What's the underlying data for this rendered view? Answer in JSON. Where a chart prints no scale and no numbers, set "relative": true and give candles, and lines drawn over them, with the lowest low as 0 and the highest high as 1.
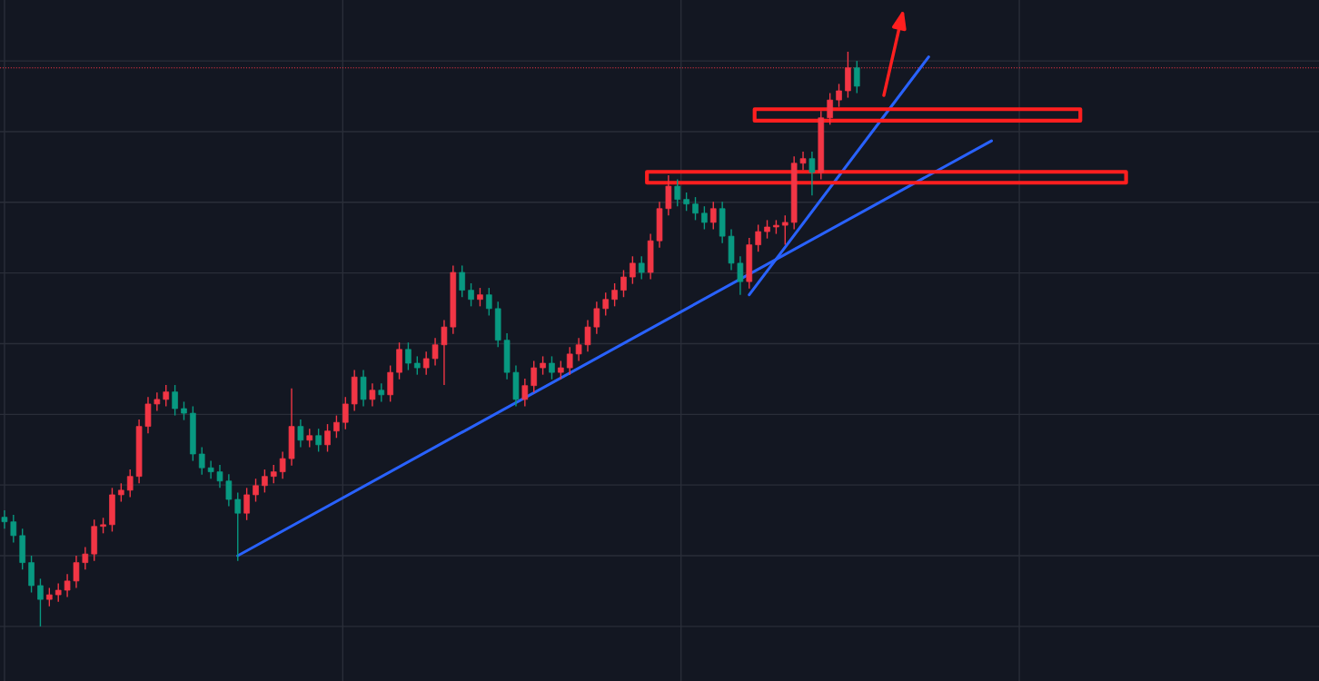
{
  "chart_data": {
    "type": "candlestick",
    "relative": true,
    "grid": true,
    "tick_labels": false,
    "colors": [
      "#089981",
      "#089981",
      "#089981",
      "#089981",
      "#089981",
      "#f23645",
      "#f23645",
      "#f23645",
      "#f23645",
      "#f23645",
      "#f23645",
      "#f23645",
      "#f23645",
      "#f23645",
      "#f23645",
      "#f23645",
      "#f23645",
      "#f23645",
      "#f23645",
      "#089981",
      "#089981",
      "#089981",
      "#089981",
      "#089981",
      "#089981",
      "#089981",
      "#089981",
      "#f23645",
      "#f23645",
      "#f23645",
      "#f23645",
      "#f23645",
      "#f23645",
      "#089981",
      "#f23645",
      "#089981",
      "#f23645",
      "#f23645",
      "#f23645",
      "#f23645",
      "#089981",
      "#f23645",
      "#089981",
      "#f23645",
      "#f23645",
      "#089981",
      "#089981",
      "#f23645",
      "#f23645",
      "#f23645",
      "#f23645",
      "#089981",
      "#089981",
      "#f23645",
      "#089981",
      "#089981",
      "#089981",
      "#089981",
      "#f23645",
      "#f23645",
      "#f23645",
      "#089981",
      "#f23645",
      "#f23645",
      "#f23645",
      "#f23645",
      "#f23645",
      "#f23645",
      "#f23645",
      "#f23645",
      "#f23645",
      "#089981",
      "#f23645",
      "#f23645",
      "#f23645",
      "#089981",
      "#089981",
      "#089981",
      "#089981",
      "#f23645",
      "#089981",
      "#089981",
      "#089981",
      "#f23645",
      "#f23645",
      "#f23645",
      "#f23645",
      "#f23645",
      "#f23645",
      "#f23645",
      "#089981",
      "#f23645",
      "#f23645",
      "#f23645",
      "#f23645",
      "#089981",
      null,
      null,
      null,
      null,
      null,
      null,
      null,
      null,
      null,
      null,
      null,
      null,
      null,
      null,
      null,
      null,
      null,
      null,
      null,
      null,
      null,
      null,
      null,
      null,
      null,
      null,
      null,
      null,
      null,
      null,
      null,
      null,
      null,
      null,
      null,
      null,
      null,
      null,
      null,
      null,
      null,
      null,
      null,
      null,
      null,
      null,
      null,
      null,
      null,
      null,
      null
    ],
    "categories": [
      null,
      null,
      null,
      null,
      null,
      null,
      null,
      null,
      null,
      null,
      null,
      null,
      null,
      null,
      null,
      null,
      null,
      null,
      null,
      null,
      null,
      null,
      null,
      null,
      null,
      null,
      null,
      null,
      null,
      null,
      null,
      null,
      null,
      null,
      null,
      null,
      null,
      null,
      null,
      null,
      null,
      null,
      null,
      null,
      null,
      null,
      null,
      null,
      null,
      null,
      null,
      null,
      null,
      null,
      null,
      null,
      null,
      null,
      null,
      null,
      null,
      null,
      null,
      null,
      null,
      null,
      null,
      null,
      null,
      null,
      null,
      null,
      null,
      null,
      null,
      null,
      null,
      null,
      null,
      null,
      null,
      null,
      null,
      null,
      null,
      null,
      null,
      null,
      null,
      null,
      null,
      null,
      null,
      null,
      null,
      null,
      null,
      null,
      null,
      null,
      null,
      null,
      null,
      null,
      null,
      null,
      null,
      null,
      null,
      null,
      null,
      null,
      null,
      null,
      null,
      null,
      null,
      null,
      null,
      null,
      null,
      null,
      null,
      null,
      null,
      null,
      null,
      null,
      null,
      null,
      null,
      null,
      null,
      null,
      null,
      null,
      null,
      null,
      null,
      null,
      null,
      null,
      null,
      null,
      null,
      null,
      null
    ],
    "ohlc": [
      [
        0.19,
        0.202,
        0.17,
        0.182
      ],
      [
        0.182,
        0.194,
        0.146,
        0.158
      ],
      [
        0.158,
        0.17,
        0.099,
        0.111
      ],
      [
        0.111,
        0.123,
        0.059,
        0.071
      ],
      [
        0.071,
        0.083,
        0,
        0.047
      ],
      [
        0.047,
        0.067,
        0.035,
        0.055
      ],
      [
        0.055,
        0.075,
        0.043,
        0.063
      ],
      [
        0.063,
        0.091,
        0.051,
        0.079
      ],
      [
        0.079,
        0.123,
        0.067,
        0.111
      ],
      [
        0.111,
        0.138,
        0.099,
        0.126
      ],
      [
        0.126,
        0.186,
        0.114,
        0.174
      ],
      [
        0.174,
        0.189,
        0.162,
        0.177
      ],
      [
        0.177,
        0.241,
        0.165,
        0.229
      ],
      [
        0.229,
        0.249,
        0.217,
        0.237
      ],
      [
        0.237,
        0.273,
        0.225,
        0.261
      ],
      [
        0.261,
        0.36,
        0.249,
        0.348
      ],
      [
        0.348,
        0.399,
        0.336,
        0.387
      ],
      [
        0.387,
        0.407,
        0.375,
        0.395
      ],
      [
        0.395,
        0.42,
        0.383,
        0.408
      ],
      [
        0.408,
        0.42,
        0.367,
        0.379
      ],
      [
        0.379,
        0.391,
        0.359,
        0.371
      ],
      [
        0.371,
        0.383,
        0.288,
        0.3
      ],
      [
        0.3,
        0.312,
        0.264,
        0.276
      ],
      [
        0.276,
        0.288,
        0.257,
        0.269
      ],
      [
        0.269,
        0.281,
        0.241,
        0.253
      ],
      [
        0.253,
        0.265,
        0.209,
        0.221
      ],
      [
        0.221,
        0.233,
        0.114,
        0.197
      ],
      [
        0.197,
        0.241,
        0.185,
        0.229
      ],
      [
        0.229,
        0.257,
        0.217,
        0.245
      ],
      [
        0.245,
        0.273,
        0.233,
        0.261
      ],
      [
        0.261,
        0.281,
        0.249,
        0.269
      ],
      [
        0.269,
        0.304,
        0.257,
        0.292
      ],
      [
        0.292,
        0.414,
        0.28,
        0.348
      ],
      [
        0.348,
        0.36,
        0.312,
        0.324
      ],
      [
        0.324,
        0.344,
        0.312,
        0.332
      ],
      [
        0.332,
        0.344,
        0.304,
        0.316
      ],
      [
        0.316,
        0.352,
        0.304,
        0.34
      ],
      [
        0.34,
        0.367,
        0.328,
        0.355
      ],
      [
        0.355,
        0.399,
        0.343,
        0.387
      ],
      [
        0.387,
        0.446,
        0.375,
        0.434
      ],
      [
        0.434,
        0.446,
        0.383,
        0.395
      ],
      [
        0.395,
        0.423,
        0.383,
        0.411
      ],
      [
        0.411,
        0.423,
        0.391,
        0.403
      ],
      [
        0.403,
        0.454,
        0.391,
        0.442
      ],
      [
        0.442,
        0.494,
        0.43,
        0.482
      ],
      [
        0.482,
        0.494,
        0.446,
        0.458
      ],
      [
        0.458,
        0.47,
        0.438,
        0.45
      ],
      [
        0.45,
        0.478,
        0.438,
        0.466
      ],
      [
        0.466,
        0.502,
        0.454,
        0.49
      ],
      [
        0.49,
        0.533,
        0.42,
        0.521
      ],
      [
        0.521,
        0.628,
        0.509,
        0.616
      ],
      [
        0.616,
        0.628,
        0.573,
        0.585
      ],
      [
        0.585,
        0.597,
        0.557,
        0.569
      ],
      [
        0.569,
        0.589,
        0.557,
        0.577
      ],
      [
        0.577,
        0.589,
        0.541,
        0.553
      ],
      [
        0.553,
        0.565,
        0.486,
        0.498
      ],
      [
        0.498,
        0.51,
        0.43,
        0.442
      ],
      [
        0.442,
        0.454,
        0.383,
        0.395
      ],
      [
        0.395,
        0.431,
        0.383,
        0.419
      ],
      [
        0.419,
        0.462,
        0.407,
        0.45
      ],
      [
        0.45,
        0.47,
        0.438,
        0.458
      ],
      [
        0.458,
        0.47,
        0.43,
        0.442
      ],
      [
        0.442,
        0.462,
        0.43,
        0.45
      ],
      [
        0.45,
        0.486,
        0.438,
        0.474
      ],
      [
        0.474,
        0.502,
        0.462,
        0.49
      ],
      [
        0.49,
        0.533,
        0.478,
        0.521
      ],
      [
        0.521,
        0.565,
        0.509,
        0.553
      ],
      [
        0.553,
        0.581,
        0.541,
        0.569
      ],
      [
        0.569,
        0.597,
        0.557,
        0.585
      ],
      [
        0.585,
        0.62,
        0.573,
        0.608
      ],
      [
        0.608,
        0.644,
        0.596,
        0.632
      ],
      [
        0.632,
        0.644,
        0.604,
        0.616
      ],
      [
        0.616,
        0.683,
        0.604,
        0.671
      ],
      [
        0.671,
        0.739,
        0.659,
        0.727
      ],
      [
        0.727,
        0.785,
        0.715,
        0.766
      ],
      [
        0.766,
        0.778,
        0.731,
        0.743
      ],
      [
        0.743,
        0.755,
        0.723,
        0.735
      ],
      [
        0.735,
        0.747,
        0.707,
        0.719
      ],
      [
        0.719,
        0.731,
        0.691,
        0.703
      ],
      [
        0.703,
        0.739,
        0.691,
        0.727
      ],
      [
        0.727,
        0.739,
        0.667,
        0.679
      ],
      [
        0.679,
        0.691,
        0.62,
        0.632
      ],
      [
        0.632,
        0.644,
        0.577,
        0.6
      ],
      [
        0.6,
        0.676,
        0.588,
        0.664
      ],
      [
        0.664,
        0.699,
        0.652,
        0.687
      ],
      [
        0.687,
        0.707,
        0.675,
        0.695
      ],
      [
        0.695,
        0.707,
        0.683,
        0.698
      ],
      [
        0.698,
        0.715,
        0.664,
        0.703
      ],
      [
        0.703,
        0.818,
        0.691,
        0.806
      ],
      [
        0.806,
        0.826,
        0.794,
        0.814
      ],
      [
        0.814,
        0.826,
        0.75,
        0.79
      ],
      [
        0.79,
        0.897,
        0.778,
        0.885
      ],
      [
        0.885,
        0.928,
        0.873,
        0.916
      ],
      [
        0.916,
        0.944,
        0.904,
        0.932
      ],
      [
        0.932,
        1,
        0.92,
        0.972
      ],
      [
        0.972,
        0.984,
        0.928,
        0.94
      ],
      null,
      null,
      null,
      null,
      null,
      null,
      null,
      null,
      null,
      null,
      null,
      null,
      null,
      null,
      null,
      null,
      null,
      null,
      null,
      null,
      null,
      null,
      null,
      null,
      null,
      null,
      null,
      null,
      null,
      null,
      null,
      null,
      null,
      null,
      null,
      null,
      null,
      null,
      null,
      null,
      null,
      null,
      null,
      null,
      null,
      null,
      null,
      null,
      null,
      null,
      null
    ],
    "series": [
      {
        "type": "line",
        "color": "#2962ff",
        "values": [
          null,
          null,
          null,
          null,
          null,
          null,
          null,
          null,
          null,
          null,
          null,
          null,
          null,
          null,
          null,
          null,
          null,
          null,
          null,
          null,
          null,
          null,
          null,
          null,
          null,
          null,
          0.123,
          null,
          null,
          null,
          null,
          null,
          null,
          null,
          null,
          null,
          null,
          null,
          null,
          null,
          null,
          null,
          null,
          null,
          null,
          null,
          null,
          null,
          null,
          null,
          null,
          null,
          null,
          null,
          null,
          null,
          null,
          null,
          null,
          null,
          null,
          null,
          null,
          null,
          null,
          null,
          null,
          null,
          null,
          null,
          null,
          null,
          null,
          null,
          null,
          null,
          null,
          null,
          null,
          null,
          null,
          null,
          null,
          null,
          null,
          null,
          null,
          null,
          null,
          null,
          null,
          null,
          null,
          null,
          null,
          null,
          null,
          null,
          null,
          null,
          null,
          null,
          null,
          null,
          null,
          null,
          null,
          null,
          null,
          null,
          0.845,
          null,
          null,
          null,
          null,
          null,
          null,
          null,
          null,
          null,
          null,
          null,
          null,
          null,
          null,
          null,
          null,
          null,
          null,
          null,
          null,
          null,
          null,
          null,
          null,
          null,
          null,
          null,
          null,
          null,
          null,
          null,
          null,
          null,
          null,
          null,
          null
        ]
      },
      {
        "type": "line",
        "color": "#2962ff",
        "values": [
          null,
          null,
          null,
          null,
          null,
          null,
          null,
          null,
          null,
          null,
          null,
          null,
          null,
          null,
          null,
          null,
          null,
          null,
          null,
          null,
          null,
          null,
          null,
          null,
          null,
          null,
          null,
          null,
          null,
          null,
          null,
          null,
          null,
          null,
          null,
          null,
          null,
          null,
          null,
          null,
          null,
          null,
          null,
          null,
          null,
          null,
          null,
          null,
          null,
          null,
          null,
          null,
          null,
          null,
          null,
          null,
          null,
          null,
          null,
          null,
          null,
          null,
          null,
          null,
          null,
          null,
          null,
          null,
          null,
          null,
          null,
          null,
          null,
          null,
          null,
          null,
          null,
          null,
          null,
          null,
          null,
          null,
          null,
          0.577,
          null,
          null,
          null,
          null,
          null,
          null,
          null,
          null,
          null,
          null,
          null,
          null,
          null,
          null,
          null,
          null,
          null,
          null,
          null,
          0.991,
          null,
          null,
          null,
          null,
          null,
          null,
          null,
          null,
          null,
          null,
          null,
          null,
          null,
          null,
          null,
          null,
          null,
          null,
          null,
          null,
          null,
          null,
          null,
          null,
          null,
          null,
          null,
          null,
          null,
          null,
          null,
          null,
          null,
          null,
          null,
          null,
          null,
          null,
          null,
          null,
          null,
          null,
          null
        ]
      }
    ],
    "ref_lines": [
      {
        "axis": "y",
        "value": 0.972,
        "color": "#f23645",
        "line_style": "dotted"
      }
    ]
  }
}
